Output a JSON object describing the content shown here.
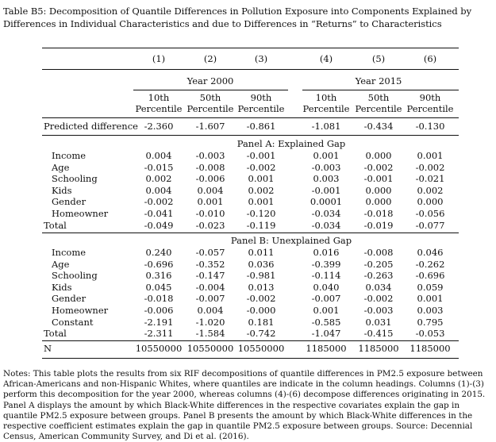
{
  "caption": "Table B5: Decomposition of Quantile Differences in Pollution Exposure into Components Explained by Differences in Individual Characteristics and due to Differences in “Returns” to Characteristics",
  "columns": [
    "(1)",
    "(2)",
    "(3)",
    "(4)",
    "(5)",
    "(6)"
  ],
  "year_groups": [
    "Year 2000",
    "Year 2015"
  ],
  "percentiles": [
    {
      "top": "10th",
      "bottom": "Percentile"
    },
    {
      "top": "50th",
      "bottom": "Percentile"
    },
    {
      "top": "90th",
      "bottom": "Percentile"
    },
    {
      "top": "10th",
      "bottom": "Percentile"
    },
    {
      "top": "50th",
      "bottom": "Percentile"
    },
    {
      "top": "90th",
      "bottom": "Percentile"
    }
  ],
  "predicted": {
    "label": "Predicted difference",
    "values": [
      "-2.360",
      "-1.607",
      "-0.861",
      "-1.081",
      "-0.434",
      "-0.130"
    ]
  },
  "panel_a": {
    "title": "Panel A: Explained Gap",
    "rows": [
      {
        "label": "Income",
        "values": [
          "0.004",
          "-0.003",
          "-0.001",
          "0.001",
          "0.000",
          "0.001"
        ]
      },
      {
        "label": "Age",
        "values": [
          "-0.015",
          "-0.008",
          "-0.002",
          "-0.003",
          "-0.002",
          "-0.002"
        ]
      },
      {
        "label": "Schooling",
        "values": [
          "0.002",
          "-0.006",
          "0.001",
          "0.003",
          "-0.001",
          "-0.021"
        ]
      },
      {
        "label": "Kids",
        "values": [
          "0.004",
          "0.004",
          "0.002",
          "-0.001",
          "0.000",
          "0.002"
        ]
      },
      {
        "label": "Gender",
        "values": [
          "-0.002",
          "0.001",
          "0.001",
          "0.0001",
          "0.000",
          "0.000"
        ]
      },
      {
        "label": "Homeowner",
        "values": [
          "-0.041",
          "-0.010",
          "-0.120",
          "-0.034",
          "-0.018",
          "-0.056"
        ]
      },
      {
        "label": "Total",
        "values": [
          "-0.049",
          "-0.023",
          "-0.119",
          "-0.034",
          "-0.019",
          "-0.077"
        ]
      }
    ]
  },
  "panel_b": {
    "title": "Panel B: Unexplained Gap",
    "rows": [
      {
        "label": "Income",
        "values": [
          "0.240",
          "-0.057",
          "0.011",
          "0.016",
          "-0.008",
          "0.046"
        ]
      },
      {
        "label": "Age",
        "values": [
          "-0.696",
          "-0.352",
          "0.036",
          "-0.399",
          "-0.205",
          "-0.262"
        ]
      },
      {
        "label": "Schooling",
        "values": [
          "0.316",
          "-0.147",
          "-0.981",
          "-0.114",
          "-0.263",
          "-0.696"
        ]
      },
      {
        "label": "Kids",
        "values": [
          "0.045",
          "-0.004",
          "0.013",
          "0.040",
          "0.034",
          "0.059"
        ]
      },
      {
        "label": "Gender",
        "values": [
          "-0.018",
          "-0.007",
          "-0.002",
          "-0.007",
          "-0.002",
          "0.001"
        ]
      },
      {
        "label": "Homeowner",
        "values": [
          "-0.006",
          "0.004",
          "-0.000",
          "0.001",
          "-0.003",
          "0.003"
        ]
      },
      {
        "label": "Constant",
        "values": [
          "-2.191",
          "-1.020",
          "0.181",
          "-0.585",
          "0.031",
          "0.795"
        ]
      },
      {
        "label": "Total",
        "values": [
          "-2.311",
          "-1.584",
          "-0.742",
          "-1.047",
          "-0.415",
          "-0.053"
        ]
      }
    ]
  },
  "n_row": {
    "label": "N",
    "values": [
      "10550000",
      "10550000",
      "10550000",
      "1185000",
      "1185000",
      "1185000"
    ]
  },
  "notes": "Notes: This table plots the results from six RIF decompositions of quantile differences in PM2.5 exposure between African-Americans and non-Hispanic Whites, where quantiles are indicate in the column headings. Columns (1)-(3) perform this decomposition for the year 2000, whereas columns (4)-(6) decompose differences originating in 2015. Panel A displays the amount by which Black-White differences in the respective covariates explain the gap in quantile PM2.5 exposure between groups. Panel B presents the amount by which Black-White differences in the respective coefficient estimates explain the gap in quantile PM2.5 exposure between groups. Source: Decennial Census, American Community Survey, and Di et al. (2016)."
}
